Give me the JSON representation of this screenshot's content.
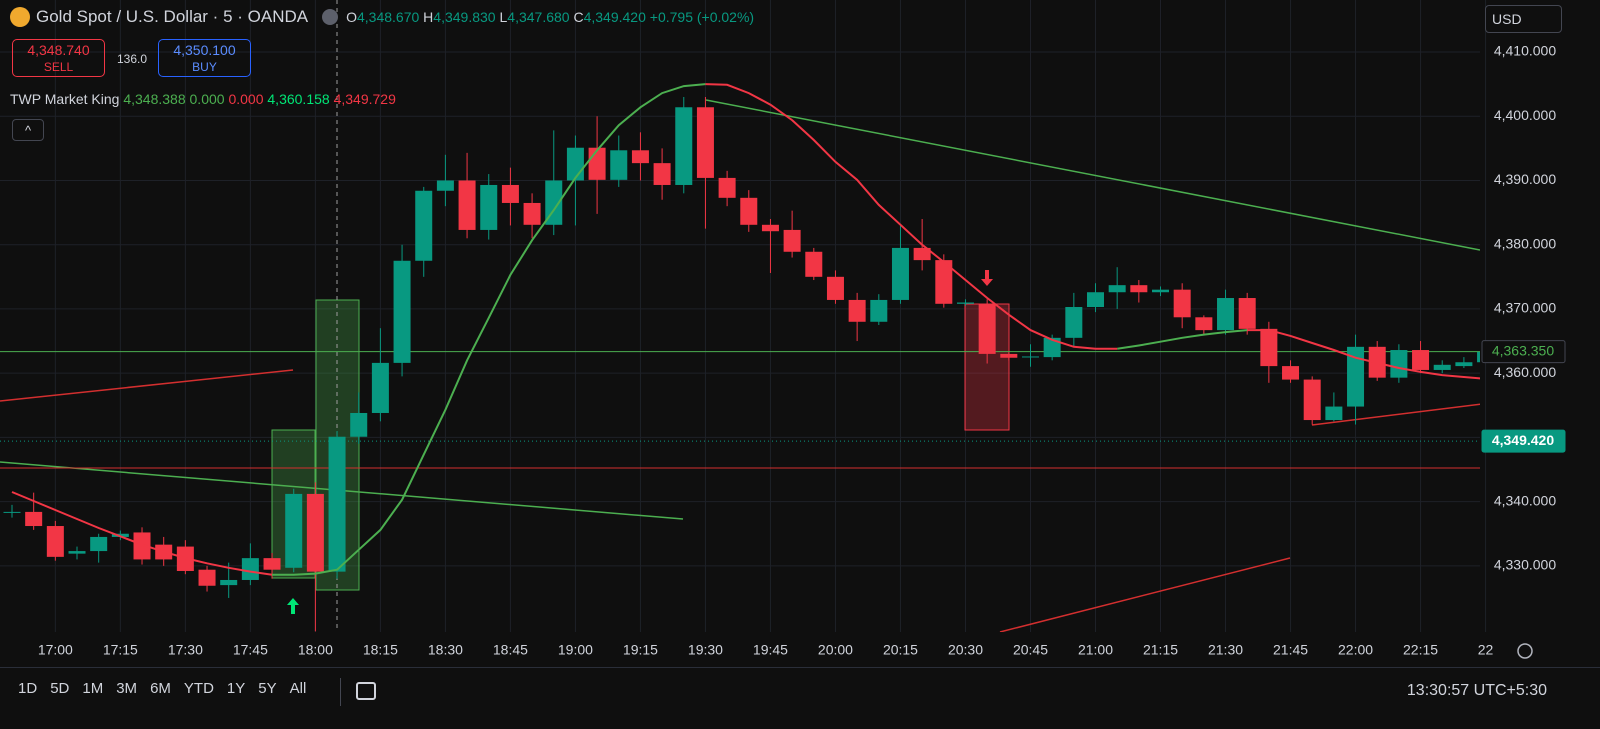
{
  "header": {
    "title": "Gold Spot / U.S. Dollar · 5 · OANDA",
    "ohlc": [
      {
        "key": "O",
        "value": "4,348.670"
      },
      {
        "key": "H",
        "value": "4,349.830"
      },
      {
        "key": "L",
        "value": "4,347.680"
      },
      {
        "key": "C",
        "value": "4,349.420"
      }
    ],
    "change": "+0.795 (+0.02%)"
  },
  "trade": {
    "sell_price": "4,348.740",
    "sell": "SELL",
    "spread": "136.0",
    "buy_price": "4,350.100",
    "buy": "BUY"
  },
  "indicator": {
    "name": "TWP Market King",
    "values": [
      "4,348.388",
      "0.000",
      "0.000",
      "4,360.158",
      "4,349.729"
    ]
  },
  "chart_data": {
    "type": "candlestick",
    "categories": [
      null,
      null,
      "17:00",
      null,
      null,
      "17:15",
      null,
      null,
      "17:30",
      null,
      null,
      "17:45",
      null,
      null,
      "18:00",
      null,
      null,
      "18:15",
      null,
      null,
      "18:30",
      null,
      null,
      "18:45",
      null,
      null,
      "19:00",
      null,
      null,
      "19:15",
      null,
      null,
      "19:30",
      null,
      null,
      "19:45",
      null,
      null,
      "20:00",
      null,
      null,
      "20:15",
      null,
      null,
      "20:30",
      null,
      null,
      "20:45",
      null,
      null,
      "21:00",
      null,
      null,
      "21:15",
      null,
      null,
      "21:30",
      null,
      null,
      "21:45",
      null,
      null,
      "22:00",
      null,
      null,
      "22:15",
      null,
      null,
      "22"
    ],
    "open": [
      4338.4,
      4338.4,
      4336.2,
      4331.9,
      4332.3,
      4334.5,
      4335.2,
      4333.3,
      4333,
      4329.4,
      4327,
      4327.8,
      4331.2,
      4329.7,
      4341.2,
      4329.1,
      4350.1,
      4353.8,
      4361.6,
      4377.5,
      4388.4,
      4390,
      4382.3,
      4389.3,
      4386.5,
      4383.1,
      4390,
      4395.1,
      4390.1,
      4394.7,
      4392.7,
      4389.3,
      4401.4,
      4390.4,
      4387.3,
      4383.1,
      4382.3,
      4378.9,
      4375,
      4371.4,
      4368,
      4371.4,
      4379.5,
      4377.6,
      4370.8,
      4370.8,
      4363,
      4362.5,
      4362.5,
      4365.5,
      4370.3,
      4372.6,
      4373.7,
      4372.6,
      4373,
      4368.7,
      4366.7,
      4371.7,
      4366.9,
      4361.1,
      4359,
      4352.7,
      4354.8,
      4364.1,
      4359.3,
      4363.6,
      4360.5,
      4361.1,
      4361.7
    ],
    "high": [
      4339.5,
      4341.4,
      4337,
      4333,
      4335,
      4335.5,
      4336,
      4334.5,
      4334,
      4330,
      4330.5,
      4333.5,
      4332,
      4342,
      4343,
      4351,
      4357,
      4367,
      4380,
      4389,
      4394,
      4394.3,
      4391,
      4392,
      4388,
      4397.8,
      4397,
      4400,
      4397,
      4397.5,
      4395,
      4403,
      4403,
      4391.5,
      4388.5,
      4384,
      4385.3,
      4379.5,
      4376,
      4372.5,
      4372.3,
      4383,
      4384,
      4378.5,
      4371.5,
      4371.5,
      4363.3,
      4364.5,
      4366,
      4372.5,
      4374,
      4376.5,
      4374.5,
      4373.5,
      4374,
      4369,
      4373,
      4372.5,
      4368,
      4362,
      4359.5,
      4357,
      4366,
      4365,
      4364.5,
      4365,
      4362,
      4362.5,
      4364
    ],
    "low": [
      4337.5,
      4335.6,
      4330.8,
      4331,
      4330.5,
      4334,
      4330.2,
      4330,
      4328.7,
      4326,
      4325,
      4327,
      4328,
      4329,
      4319.8,
      4328,
      4349,
      4352.5,
      4359.5,
      4375,
      4386,
      4381,
      4380.8,
      4383,
      4381,
      4381.5,
      4383,
      4384.8,
      4389,
      4390,
      4387,
      4388,
      4382.5,
      4386,
      4382,
      4375.6,
      4378,
      4374.5,
      4370.8,
      4365,
      4367.5,
      4370.8,
      4376,
      4370.2,
      4370.5,
      4361.5,
      4362,
      4361,
      4362,
      4364,
      4369.5,
      4370,
      4371,
      4372,
      4367,
      4366,
      4366,
      4366,
      4358.5,
      4358.5,
      4352,
      4352.5,
      4352,
      4358.8,
      4358.5,
      4360,
      4360,
      4360.8,
      4361.5
    ],
    "close": [
      4338.4,
      4336.2,
      4331.4,
      4332.3,
      4334.5,
      4335,
      4331,
      4331,
      4329.2,
      4326.9,
      4327.8,
      4331.2,
      4329.4,
      4341.2,
      4329.1,
      4350.1,
      4353.8,
      4361.6,
      4377.5,
      4388.4,
      4390,
      4382.3,
      4389.3,
      4386.5,
      4383.1,
      4390,
      4395.1,
      4390.1,
      4394.7,
      4392.7,
      4389.3,
      4401.4,
      4390.4,
      4387.3,
      4383.1,
      4382.1,
      4378.9,
      4375,
      4371.4,
      4368,
      4371.4,
      4379.5,
      4377.6,
      4370.8,
      4371,
      4363,
      4362.4,
      4362.6,
      4365.5,
      4370.3,
      4372.6,
      4373.7,
      4372.6,
      4373,
      4368.7,
      4366.7,
      4371.7,
      4366.9,
      4361.1,
      4359,
      4352.7,
      4354.8,
      4364.1,
      4359.3,
      4363.6,
      4360.5,
      4361.3,
      4361.7,
      4363.3
    ],
    "up_color": "#089981",
    "down_color": "#f23645",
    "ylim": [
      4319.7,
      4418.1
    ],
    "yticks": [
      {
        "value": 4330,
        "label": "4,330.000"
      },
      {
        "value": 4340,
        "label": "4,340.000"
      },
      {
        "value": 4350,
        "label": "4,350.000"
      },
      {
        "value": 4360,
        "label": "4,360.000"
      },
      {
        "value": 4370,
        "label": "4,370.000"
      },
      {
        "value": 4380,
        "label": "4,380.000"
      },
      {
        "value": 4390,
        "label": "4,390.000"
      },
      {
        "value": 4400,
        "label": "4,400.000"
      },
      {
        "value": 4410,
        "label": "4,410.000"
      }
    ],
    "grid": true,
    "indicator_lines": [
      {
        "color": "#4caf50",
        "values": [
          null,
          null,
          null,
          null,
          null,
          null,
          null,
          null,
          null,
          null,
          null,
          null,
          4328.6,
          4328.6,
          4328.8,
          4329.4,
          4332.5,
          4335.6,
          4340.3,
          4347.3,
          4354.3,
          4362,
          4368.6,
          4375.3,
          4380.7,
          4385.4,
          4390.4,
          4394.7,
          4398.6,
          4401.4,
          4403.6,
          4404.7,
          4405,
          null,
          null,
          null,
          null,
          null,
          null,
          null,
          null,
          null,
          null,
          null,
          null,
          null,
          null,
          null,
          null,
          null,
          null,
          4363.8,
          4364.3,
          4364.9,
          4365.5,
          4366,
          4366.4,
          4366.7,
          null,
          null,
          null,
          null,
          null,
          null,
          null,
          null,
          null,
          null,
          null
        ]
      },
      {
        "color": "#f23645",
        "values": [
          4341.5,
          4340.1,
          4338.7,
          4337.3,
          4335.9,
          4334.6,
          4333.3,
          4332.2,
          4331.2,
          4330.4,
          4329.7,
          4329.1,
          4328.6,
          null,
          null,
          null,
          null,
          null,
          null,
          null,
          null,
          null,
          null,
          null,
          null,
          null,
          null,
          null,
          null,
          null,
          null,
          null,
          4405,
          4404.9,
          4403.6,
          4401.8,
          4399.4,
          4396.3,
          4392.9,
          4390.1,
          4386.2,
          4383.1,
          4380,
          4377.3,
          4374.5,
          4371.7,
          4369.1,
          4366.7,
          4365.2,
          4364.1,
          4363.8,
          4363.8,
          null,
          null,
          null,
          null,
          null,
          4366.7,
          4366.7,
          4365.8,
          4364.7,
          4363.6,
          4362.4,
          4361.6,
          4360.8,
          4360.2,
          4359.7,
          4359.4,
          4359.1
        ]
      }
    ],
    "price_labels": [
      {
        "value": 4363.35,
        "label": "4,363.350"
      },
      {
        "value": 4349.42,
        "label": "4,349.420"
      }
    ]
  },
  "toolbar": {
    "currency": "USD",
    "ranges": [
      "1D",
      "5D",
      "1M",
      "3M",
      "6M",
      "YTD",
      "1Y",
      "5Y",
      "All"
    ],
    "clock": "13:30:57 UTC+5:30"
  }
}
